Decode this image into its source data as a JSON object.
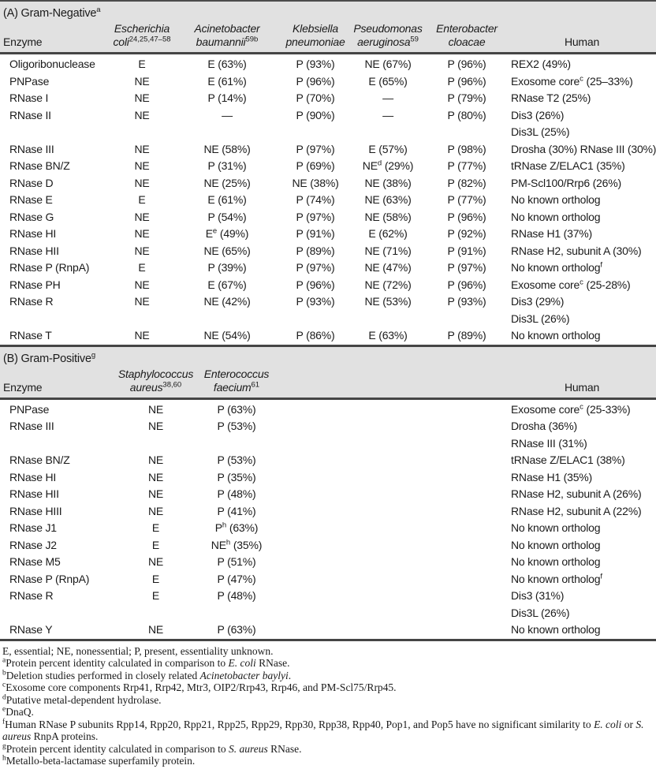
{
  "colors": {
    "header_band_bg": "#e1e1e1",
    "rule_dark": "#454545",
    "text": "#1a1a1a",
    "body_bg": "#ffffff"
  },
  "legend_symbols": {
    "essential": "E",
    "nonessential": "NE",
    "present": "P"
  },
  "section_a": {
    "title": "(A) Gram-Negative^{a}",
    "columns": [
      "Enzyme",
      "~{Escherichia}\n~{coli}^{24,25,47–58}",
      "~{Acinetobacter}\n~{baumannii}^{59b}",
      "~{Klebsiella}\n~{pneumoniae}",
      "~{Pseudomonas}\n~{aeruginosa}^{59}",
      "~{Enterobacter}\n~{cloacae}",
      "Human"
    ],
    "rows": [
      [
        "Oligoribonuclease",
        "E",
        "E (63%)",
        "P (93%)",
        "NE (67%)",
        "P (96%)",
        "REX2 (49%)"
      ],
      [
        "PNPase",
        "NE",
        "E (61%)",
        "P (96%)",
        "E (65%)",
        "P (96%)",
        "Exosome core^{c} (25–33%)"
      ],
      [
        "RNase I",
        "NE",
        "P (14%)",
        "P (70%)",
        "—",
        "P (79%)",
        "RNase T2 (25%)"
      ],
      [
        "RNase II",
        "NE",
        "—",
        "P (90%)",
        "—",
        "P (80%)",
        "Dis3 (26%)\nDis3L (25%)"
      ],
      [
        "RNase III",
        "NE",
        "NE (58%)",
        "P (97%)",
        "E (57%)",
        "P (98%)",
        "Drosha (30%) RNase III (30%)"
      ],
      [
        "RNase BN/Z",
        "NE",
        "P (31%)",
        "P (69%)",
        "NE^{d} (29%)",
        "P (77%)",
        "tRNase Z/ELAC1 (35%)"
      ],
      [
        "RNase D",
        "NE",
        "NE (25%)",
        "NE (38%)",
        "NE (38%)",
        "P (82%)",
        "PM-Scl100/Rrp6 (26%)"
      ],
      [
        "RNase E",
        "E",
        "E (61%)",
        "P (74%)",
        "NE (63%)",
        "P (77%)",
        "No known ortholog"
      ],
      [
        "RNase G",
        "NE",
        "P (54%)",
        "P (97%)",
        "NE (58%)",
        "P (96%)",
        "No known ortholog"
      ],
      [
        "RNase HI",
        "NE",
        "E^{e} (49%)",
        "P (91%)",
        "E (62%)",
        "P (92%)",
        "RNase H1 (37%)"
      ],
      [
        "RNase HII",
        "NE",
        "NE (65%)",
        "P (89%)",
        "NE (71%)",
        "P (91%)",
        "RNase H2, subunit A (30%)"
      ],
      [
        "RNase P (RnpA)",
        "E",
        "P (39%)",
        "P (97%)",
        "NE (47%)",
        "P (97%)",
        "No known ortholog^{f}"
      ],
      [
        "RNase PH",
        "NE",
        "E (67%)",
        "P (96%)",
        "NE (72%)",
        "P (96%)",
        "Exosome core^{c} (25-28%)"
      ],
      [
        "RNase R",
        "NE",
        "NE (42%)",
        "P (93%)",
        "NE (53%)",
        "P (93%)",
        "Dis3 (29%)\nDis3L (26%)"
      ],
      [
        "RNase T",
        "NE",
        "NE (54%)",
        "P (86%)",
        "E (63%)",
        "P (89%)",
        "No known ortholog"
      ]
    ]
  },
  "section_b": {
    "title": "(B) Gram-Positive^{g}",
    "columns": [
      "Enzyme",
      "~{Staphylococcus}\n~{aureus}^{38,60}",
      "~{Enterococcus}\n~{faecium}^{61}",
      "Human"
    ],
    "rows": [
      [
        "PNPase",
        "NE",
        "P (63%)",
        "Exosome core^{c} (25-33%)"
      ],
      [
        "RNase III",
        "NE",
        "P (53%)",
        "Drosha (36%)\nRNase III (31%)"
      ],
      [
        "RNase BN/Z",
        "NE",
        "P (53%)",
        "tRNase Z/ELAC1 (38%)"
      ],
      [
        "RNase HI",
        "NE",
        "P (35%)",
        "RNase H1 (35%)"
      ],
      [
        "RNase HII",
        "NE",
        "P (48%)",
        "RNase H2, subunit A (26%)"
      ],
      [
        "RNase HIII",
        "NE",
        "P (41%)",
        "RNase H2, subunit A (22%)"
      ],
      [
        "RNase J1",
        "E",
        "P^{h} (63%)",
        "No known ortholog"
      ],
      [
        "RNase J2",
        "E",
        "NE^{h} (35%)",
        "No known ortholog"
      ],
      [
        "RNase M5",
        "NE",
        "P (51%)",
        "No known ortholog"
      ],
      [
        "RNase P (RnpA)",
        "E",
        "P (47%)",
        "No known ortholog^{f}"
      ],
      [
        "RNase R",
        "E",
        "P (48%)",
        "Dis3 (31%)\nDis3L (26%)"
      ],
      [
        "RNase Y",
        "NE",
        "P (63%)",
        "No known ortholog"
      ]
    ]
  },
  "footnotes": [
    {
      "marker": "",
      "text": "E, essential; NE, nonessential; P, present, essentiality unknown."
    },
    {
      "marker": "a",
      "text": "Protein percent identity calculated in comparison to ~{E. coli} RNase."
    },
    {
      "marker": "b",
      "text": "Deletion studies performed in closely related ~{Acinetobacter baylyi}."
    },
    {
      "marker": "c",
      "text": "Exosome core components Rrp41, Rrp42, Mtr3, OIP2/Rrp43, Rrp46, and PM-Scl75/Rrp45."
    },
    {
      "marker": "d",
      "text": "Putative metal-dependent hydrolase."
    },
    {
      "marker": "e",
      "text": "DnaQ."
    },
    {
      "marker": "f",
      "text": "Human RNase P subunits Rpp14, Rpp20, Rpp21, Rpp25, Rpp29, Rpp30, Rpp38, Rpp40, Pop1, and Pop5 have no significant similarity to ~{E. coli} or ~{S. aureus} RnpA proteins."
    },
    {
      "marker": "g",
      "text": "Protein percent identity calculated in comparison to ~{S. aureus} RNase."
    },
    {
      "marker": "h",
      "text": "Metallo-beta-lactamase superfamily protein."
    }
  ]
}
